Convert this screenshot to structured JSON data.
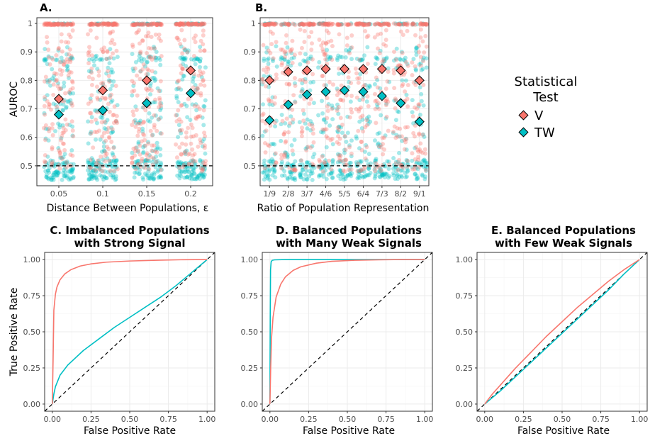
{
  "colors": {
    "V": "#F8766D",
    "TW": "#00BFC4",
    "grid_major": "#ebebeb",
    "grid_minor": "#f5f5f5",
    "frame": "#333333"
  },
  "legend": {
    "title_line1": "Statistical",
    "title_line2": "Test",
    "items": [
      "V",
      "TW"
    ],
    "placement": "right"
  },
  "chart_data": [
    {
      "panel": "A.",
      "type": "scatter",
      "xlabel": "Distance Between Populations, ε",
      "ylabel": "AUROC",
      "categories": [
        "0.05",
        "0.1",
        "0.15",
        "0.2"
      ],
      "ylim": [
        0.43,
        1.02
      ],
      "yticks": [
        "0.5",
        "0.6",
        "0.7",
        "0.8",
        "0.9",
        "1"
      ],
      "reference_line_y": 0.5,
      "series": [
        {
          "name": "V",
          "means": [
            0.735,
            0.765,
            0.8,
            0.835
          ]
        },
        {
          "name": "TW",
          "means": [
            0.68,
            0.695,
            0.72,
            0.755
          ]
        }
      ]
    },
    {
      "panel": "B.",
      "type": "scatter",
      "xlabel": "Ratio of Population Representation",
      "categories": [
        "1/9",
        "2/8",
        "3/7",
        "4/6",
        "5/5",
        "6/4",
        "7/3",
        "8/2",
        "9/1"
      ],
      "ylim": [
        0.43,
        1.02
      ],
      "yticks": [
        "0.5",
        "0.6",
        "0.7",
        "0.8",
        "0.9",
        "1"
      ],
      "reference_line_y": 0.5,
      "series": [
        {
          "name": "V",
          "means": [
            0.8,
            0.83,
            0.835,
            0.84,
            0.84,
            0.84,
            0.84,
            0.835,
            0.8
          ]
        },
        {
          "name": "TW",
          "means": [
            0.66,
            0.715,
            0.75,
            0.76,
            0.765,
            0.76,
            0.745,
            0.72,
            0.655
          ]
        }
      ]
    },
    {
      "panel": "C.",
      "type": "line",
      "title_line1": "C. Imbalanced Populations",
      "title_line2": "with Strong Signal",
      "xlabel": "False Positive Rate",
      "ylabel": "True Positive Rate",
      "xticks": [
        "0.00",
        "0.25",
        "0.50",
        "0.75",
        "1.00"
      ],
      "yticks": [
        "0.00",
        "0.25",
        "0.50",
        "0.75",
        "1.00"
      ],
      "series": [
        {
          "name": "V",
          "x": [
            0,
            0.005,
            0.01,
            0.02,
            0.03,
            0.05,
            0.08,
            0.12,
            0.18,
            0.25,
            0.35,
            0.5,
            0.7,
            0.85,
            1.0
          ],
          "y": [
            0,
            0.3,
            0.65,
            0.76,
            0.81,
            0.86,
            0.9,
            0.93,
            0.955,
            0.97,
            0.982,
            0.99,
            0.996,
            0.999,
            1.0
          ]
        },
        {
          "name": "TW",
          "x": [
            0,
            0.01,
            0.02,
            0.05,
            0.1,
            0.2,
            0.3,
            0.4,
            0.5,
            0.6,
            0.7,
            0.8,
            0.9,
            1.0
          ],
          "y": [
            0,
            0.07,
            0.12,
            0.2,
            0.27,
            0.37,
            0.45,
            0.53,
            0.6,
            0.67,
            0.74,
            0.82,
            0.91,
            1.0
          ]
        }
      ]
    },
    {
      "panel": "D.",
      "type": "line",
      "title_line1": "D. Balanced Populations",
      "title_line2": "with Many Weak Signals",
      "xlabel": "False Positive Rate",
      "xticks": [
        "0.00",
        "0.25",
        "0.50",
        "0.75",
        "1.00"
      ],
      "yticks": [
        "0.00",
        "0.25",
        "0.50",
        "0.75",
        "1.00"
      ],
      "series": [
        {
          "name": "V",
          "x": [
            0,
            0.005,
            0.01,
            0.02,
            0.04,
            0.07,
            0.1,
            0.15,
            0.2,
            0.3,
            0.4,
            0.55,
            0.7,
            0.85,
            1.0
          ],
          "y": [
            0,
            0.25,
            0.45,
            0.6,
            0.74,
            0.83,
            0.88,
            0.925,
            0.95,
            0.975,
            0.988,
            0.995,
            0.998,
            1.0,
            1.0
          ]
        },
        {
          "name": "TW",
          "x": [
            0,
            0.002,
            0.004,
            0.008,
            0.015,
            0.03,
            0.1,
            0.3,
            0.6,
            1.0
          ],
          "y": [
            0,
            0.6,
            0.93,
            0.985,
            0.995,
            0.998,
            1.0,
            1.0,
            1.0,
            1.0
          ]
        }
      ]
    },
    {
      "panel": "E.",
      "type": "line",
      "title_line1": "E. Balanced Populations",
      "title_line2": "with Few Weak Signals",
      "xlabel": "False Positive Rate",
      "xticks": [
        "0.00",
        "0.25",
        "0.50",
        "0.75",
        "1.00"
      ],
      "yticks": [
        "0.00",
        "0.25",
        "0.50",
        "0.75",
        "1.00"
      ],
      "series": [
        {
          "name": "V",
          "x": [
            0,
            0.05,
            0.1,
            0.2,
            0.3,
            0.4,
            0.5,
            0.6,
            0.7,
            0.8,
            0.9,
            1.0
          ],
          "y": [
            0,
            0.07,
            0.13,
            0.25,
            0.36,
            0.47,
            0.57,
            0.67,
            0.76,
            0.85,
            0.93,
            1.0
          ]
        },
        {
          "name": "TW",
          "x": [
            0,
            0.1,
            0.2,
            0.3,
            0.4,
            0.5,
            0.6,
            0.7,
            0.8,
            0.9,
            1.0
          ],
          "y": [
            0,
            0.09,
            0.19,
            0.29,
            0.39,
            0.49,
            0.59,
            0.69,
            0.79,
            0.9,
            1.0
          ]
        }
      ]
    }
  ]
}
